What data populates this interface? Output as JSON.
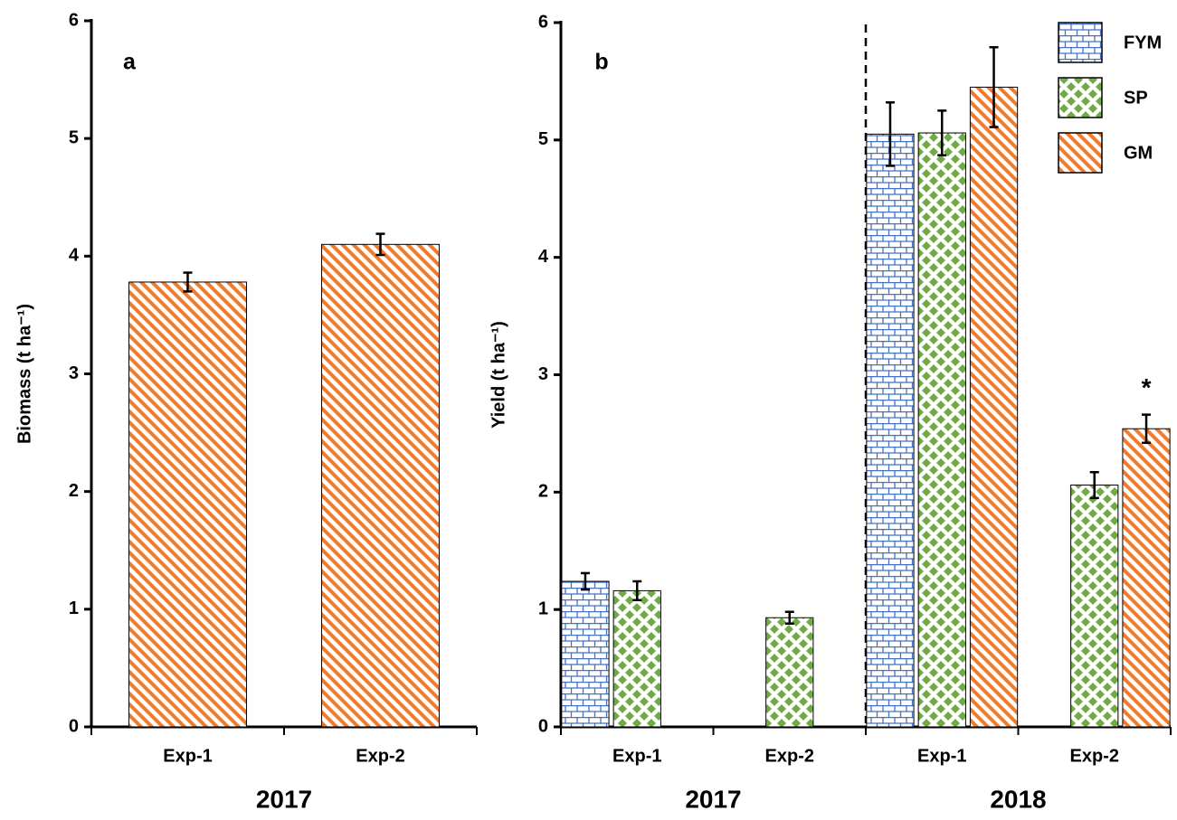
{
  "chart_data": [
    {
      "type": "bar",
      "panel_label": "a",
      "ylabel": "Biomass (t ha⁻¹)",
      "categories": [
        "Exp-1",
        "Exp-2"
      ],
      "x_groups": [
        "2017",
        "2017"
      ],
      "values": [
        3.78,
        4.1
      ],
      "errors": [
        0.08,
        0.09
      ],
      "color": "#ed7d31",
      "pattern": "diagonal",
      "ylim": [
        0,
        6
      ],
      "yticks": [
        0,
        1,
        2,
        3,
        4,
        5,
        6
      ]
    },
    {
      "type": "bar",
      "panel_label": "b",
      "ylabel": "Yield (t ha⁻¹)",
      "categories": [
        "Exp-1",
        "Exp-2",
        "Exp-1",
        "Exp-2"
      ],
      "x_groups": [
        "2017",
        "2017",
        "2018",
        "2018"
      ],
      "series": [
        {
          "name": "FYM",
          "color": "#4472c4",
          "pattern": "brick",
          "values": [
            1.24,
            null,
            5.05,
            null
          ],
          "errors": [
            0.07,
            null,
            0.27,
            null
          ]
        },
        {
          "name": "SP",
          "color": "#70ad47",
          "pattern": "diamond",
          "values": [
            1.16,
            0.93,
            5.06,
            2.06
          ],
          "errors": [
            0.08,
            0.05,
            0.19,
            0.11
          ]
        },
        {
          "name": "GM",
          "color": "#ed7d31",
          "pattern": "diagonal",
          "values": [
            null,
            null,
            5.45,
            2.54
          ],
          "errors": [
            null,
            null,
            0.34,
            0.12
          ]
        }
      ],
      "annotations": [
        {
          "text": "*"
        }
      ],
      "legend": "upper right",
      "ylim": [
        0,
        6
      ],
      "yticks": [
        0,
        1,
        2,
        3,
        4,
        5,
        6
      ]
    }
  ]
}
